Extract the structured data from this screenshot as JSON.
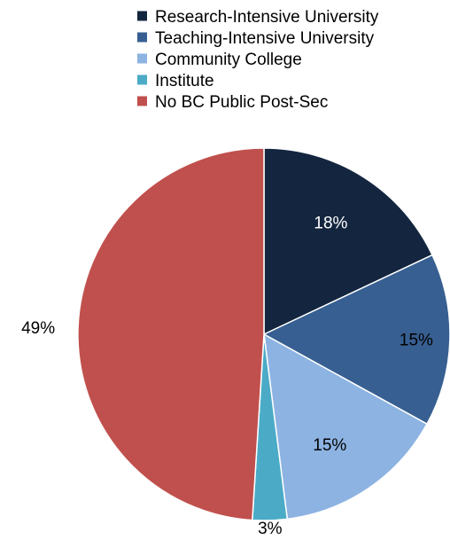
{
  "chart_data": {
    "type": "pie",
    "categories": [
      "Research-Intensive University",
      "Teaching-Intensive University",
      "Community College",
      "Institute",
      "No BC Public Post-Sec"
    ],
    "values": [
      18,
      15,
      15,
      3,
      49
    ],
    "data_labels": [
      "18%",
      "15%",
      "15%",
      "3%",
      "49%"
    ],
    "colors": [
      "#14263f",
      "#375f91",
      "#8db3e2",
      "#4babc6",
      "#c0504d"
    ],
    "label_colors": [
      "#ffffff",
      "#000000",
      "#000000",
      "#000000",
      "#000000"
    ],
    "unit": "%",
    "start_angle": "12 o'clock, clockwise",
    "legend_position": "top-right"
  }
}
